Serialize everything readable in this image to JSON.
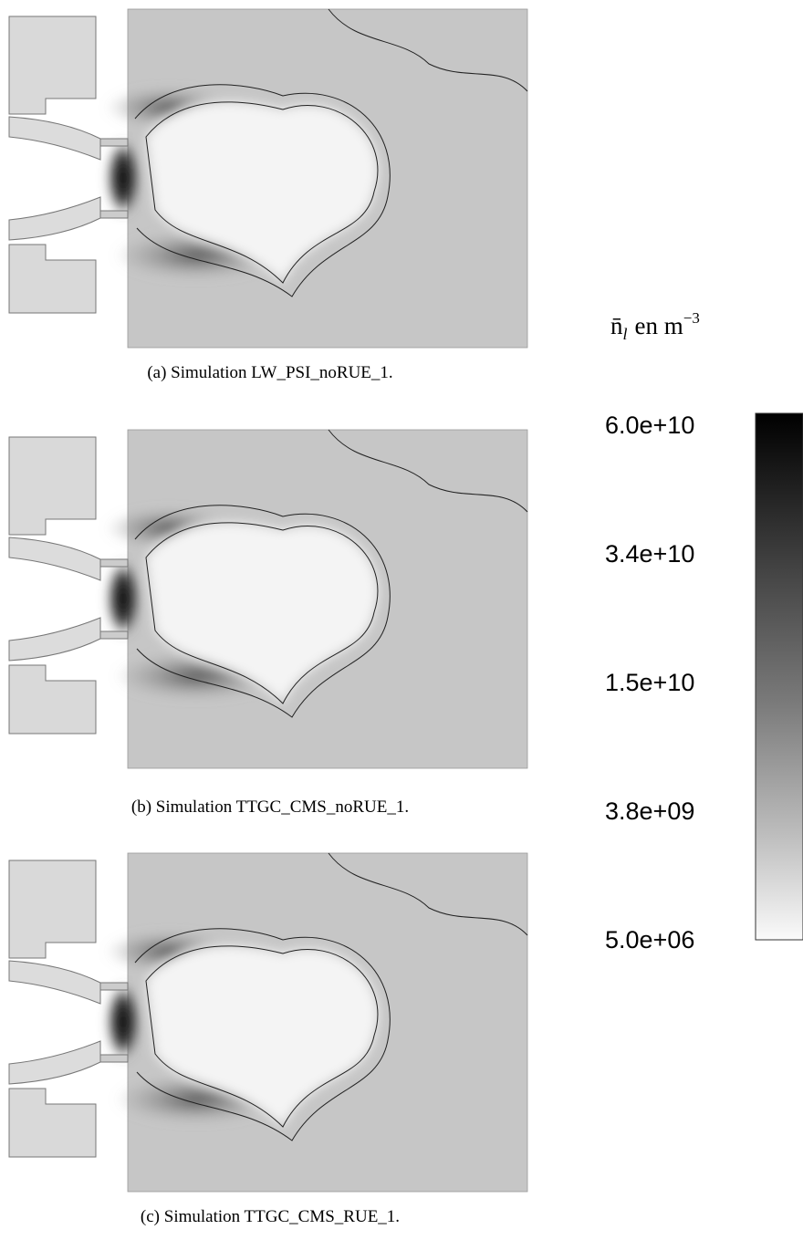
{
  "figure": {
    "panels": [
      {
        "caption": "(a) Simulation LW_PSI_noRUE_1."
      },
      {
        "caption": "(b) Simulation TTGC_CMS_noRUE_1."
      },
      {
        "caption": "(c) Simulation TTGC_CMS_RUE_1."
      }
    ],
    "colorbar": {
      "label_symbol": "n̄",
      "label_subscript": "l",
      "label_unit": "en m",
      "label_exponent": "−3",
      "tick_labels": [
        "6.0e+10",
        "3.4e+10",
        "1.5e+10",
        "3.8e+09",
        "5.0e+06"
      ]
    }
  }
}
